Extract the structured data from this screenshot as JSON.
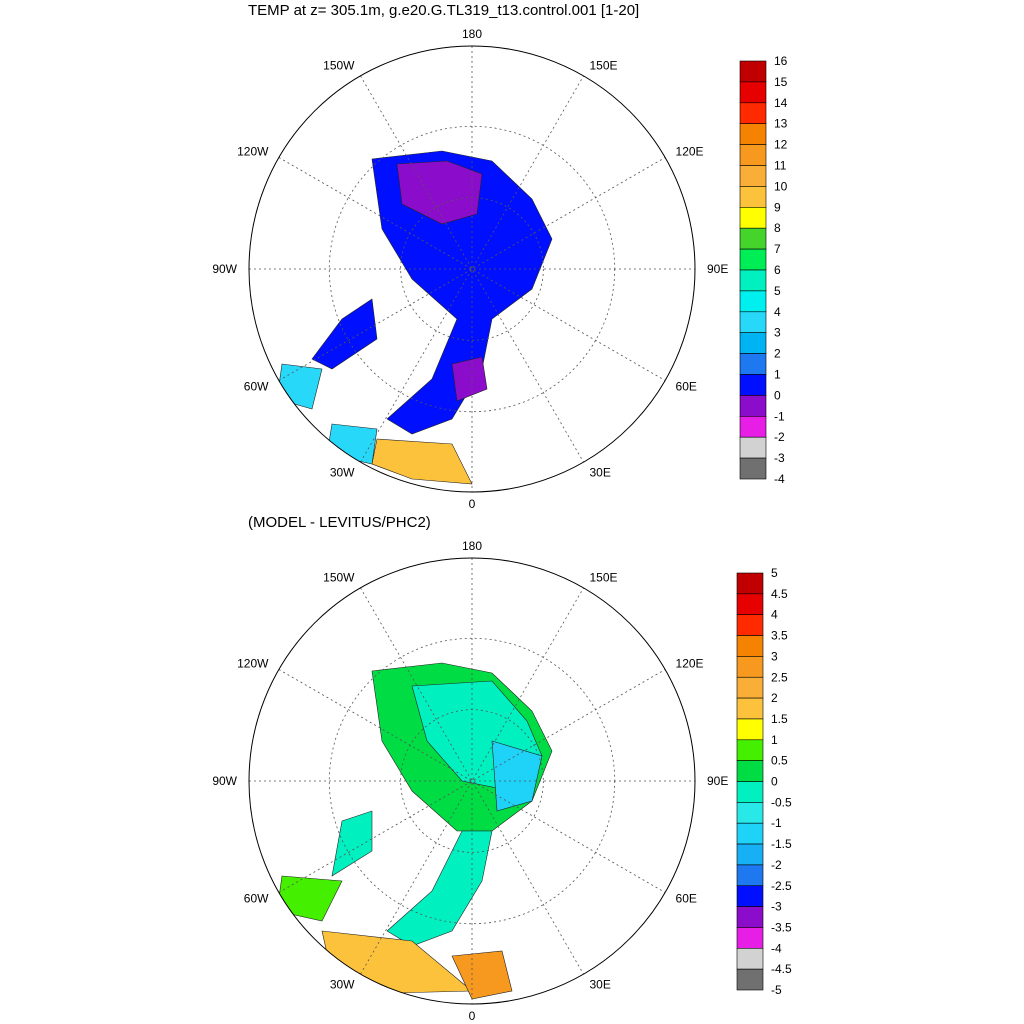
{
  "chart_data": [
    {
      "type": "heatmap",
      "projection": "north polar stereographic",
      "title": "TEMP at z= 305.1m, g.e20.G.TL319_t13.control.001 [1-20]",
      "longitude_labels": [
        "180",
        "150E",
        "120E",
        "90E",
        "60E",
        "30E",
        "0",
        "30W",
        "60W",
        "90W",
        "120W",
        "150W"
      ],
      "colorbar": {
        "levels": [
          "16",
          "15",
          "14",
          "13",
          "12",
          "11",
          "10",
          "9",
          "8",
          "7",
          "6",
          "5",
          "4",
          "3",
          "2",
          "1",
          "0",
          "-1",
          "-2",
          "-3",
          "-4"
        ],
        "colors": [
          "#c00000",
          "#e60000",
          "#ff2a00",
          "#f58200",
          "#f7991f",
          "#f9ae38",
          "#fdc23c",
          "#ffff00",
          "#44d42c",
          "#00ee55",
          "#00f0c0",
          "#00f0f0",
          "#28d8f8",
          "#00b4f4",
          "#1e78f0",
          "#0010ff",
          "#8c0ccc",
          "#e61ee6",
          "#d2d2d2",
          "#707070"
        ]
      }
    },
    {
      "type": "heatmap",
      "projection": "north polar stereographic",
      "title": "(MODEL - LEVITUS/PHC2)",
      "longitude_labels": [
        "180",
        "150E",
        "120E",
        "90E",
        "60E",
        "30E",
        "0",
        "30W",
        "60W",
        "90W",
        "120W",
        "150W"
      ],
      "colorbar": {
        "levels": [
          "5",
          "4.5",
          "4",
          "3.5",
          "3",
          "2.5",
          "2",
          "1.5",
          "1",
          "0.5",
          "0",
          "-0.5",
          "-1",
          "-1.5",
          "-2",
          "-2.5",
          "-3",
          "-3.5",
          "-4",
          "-4.5",
          "-5"
        ],
        "colors": [
          "#c00000",
          "#e60000",
          "#ff2a00",
          "#f58200",
          "#f7991f",
          "#f9ae38",
          "#fdc23c",
          "#ffff00",
          "#44f000",
          "#00dd44",
          "#00f0c0",
          "#28e8e8",
          "#1ed2f8",
          "#18b0f4",
          "#1e78f0",
          "#0010ff",
          "#8c0ccc",
          "#e61ee6",
          "#d2d2d2",
          "#707070"
        ]
      }
    }
  ]
}
